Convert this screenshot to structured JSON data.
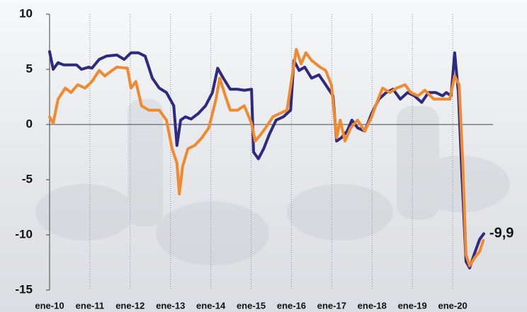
{
  "chart_data": {
    "type": "line",
    "annotation": "-9,9",
    "annotation_color": "#a3275f",
    "xlim": [
      2010,
      2021
    ],
    "xticks": [
      {
        "value": 2010,
        "label": "ene-10"
      },
      {
        "value": 2011,
        "label": "ene-11"
      },
      {
        "value": 2012,
        "label": "ene-12"
      },
      {
        "value": 2013,
        "label": "ene-13"
      },
      {
        "value": 2014,
        "label": "ene-14"
      },
      {
        "value": 2015,
        "label": "ene-15"
      },
      {
        "value": 2016,
        "label": "ene-16"
      },
      {
        "value": 2017,
        "label": "ene-17"
      },
      {
        "value": 2018,
        "label": "ene-18"
      },
      {
        "value": 2019,
        "label": "ene-19"
      },
      {
        "value": 2020,
        "label": "ene-20"
      }
    ],
    "ylim": [
      -15,
      10
    ],
    "yticks": [
      -15,
      -10,
      -5,
      0,
      5,
      10
    ],
    "grid": true,
    "series": [
      {
        "color": "#2e2a7f",
        "x": [
          2010.0,
          2010.09,
          2010.21,
          2010.35,
          2010.53,
          2010.67,
          2010.79,
          2010.97,
          2011.05,
          2011.23,
          2011.41,
          2011.67,
          2011.85,
          2012.02,
          2012.2,
          2012.37,
          2012.55,
          2012.72,
          2012.9,
          2013.08,
          2013.16,
          2013.25,
          2013.37,
          2013.51,
          2013.69,
          2013.87,
          2014.04,
          2014.17,
          2014.31,
          2014.48,
          2014.66,
          2014.83,
          2015.01,
          2015.06,
          2015.18,
          2015.31,
          2015.45,
          2015.62,
          2015.8,
          2015.98,
          2016.06,
          2016.19,
          2016.33,
          2016.5,
          2016.68,
          2016.85,
          2017.03,
          2017.12,
          2017.24,
          2017.38,
          2017.5,
          2017.64,
          2017.82,
          2017.99,
          2018.17,
          2018.35,
          2018.52,
          2018.7,
          2018.88,
          2019.05,
          2019.23,
          2019.4,
          2019.58,
          2019.75,
          2019.84,
          2019.96,
          2020.05,
          2020.14,
          2020.23,
          2020.33,
          2020.42,
          2020.54,
          2020.67,
          2020.77
        ],
        "values": [
          6.6,
          5.0,
          5.6,
          5.4,
          5.4,
          5.4,
          5.0,
          5.2,
          5.1,
          5.9,
          6.2,
          6.3,
          5.9,
          6.5,
          6.5,
          6.2,
          4.2,
          3.3,
          2.9,
          1.7,
          -1.9,
          0.4,
          0.7,
          0.5,
          1.0,
          1.7,
          2.9,
          5.1,
          4.2,
          3.2,
          3.2,
          3.1,
          3.2,
          -2.5,
          -3.1,
          -2.2,
          -0.9,
          0.4,
          0.7,
          1.3,
          5.8,
          4.9,
          5.2,
          4.2,
          4.5,
          3.6,
          2.6,
          -1.5,
          -1.2,
          -0.6,
          0.4,
          -0.3,
          -0.6,
          1.0,
          2.3,
          2.9,
          3.2,
          2.3,
          2.9,
          2.6,
          2.0,
          2.9,
          2.9,
          2.6,
          2.9,
          2.6,
          6.5,
          2.9,
          -4.7,
          -12.4,
          -13.0,
          -11.7,
          -10.4,
          -9.9
        ]
      },
      {
        "color": "#f0892f",
        "x": [
          2010.0,
          2010.09,
          2010.21,
          2010.39,
          2010.53,
          2010.7,
          2010.88,
          2011.05,
          2011.23,
          2011.37,
          2011.55,
          2011.67,
          2011.93,
          2012.02,
          2012.14,
          2012.28,
          2012.46,
          2012.72,
          2012.9,
          2013.04,
          2013.16,
          2013.22,
          2013.3,
          2013.43,
          2013.6,
          2013.78,
          2013.95,
          2014.13,
          2014.22,
          2014.36,
          2014.48,
          2014.66,
          2014.83,
          2015.01,
          2015.1,
          2015.24,
          2015.36,
          2015.54,
          2015.71,
          2015.89,
          2016.01,
          2016.12,
          2016.24,
          2016.36,
          2016.5,
          2016.71,
          2016.85,
          2016.99,
          2017.12,
          2017.21,
          2017.33,
          2017.47,
          2017.64,
          2017.82,
          2017.99,
          2018.12,
          2018.26,
          2018.44,
          2018.61,
          2018.82,
          2018.96,
          2019.14,
          2019.31,
          2019.53,
          2019.75,
          2019.93,
          2020.05,
          2020.16,
          2020.25,
          2020.33,
          2020.42,
          2020.54,
          2020.67,
          2020.76
        ],
        "values": [
          0.7,
          0.1,
          2.3,
          3.3,
          2.9,
          3.6,
          3.3,
          3.9,
          4.9,
          4.4,
          4.9,
          5.2,
          5.1,
          3.3,
          3.9,
          1.7,
          1.3,
          1.3,
          0.4,
          -2.2,
          -3.5,
          -6.3,
          -3.8,
          -2.2,
          -1.9,
          -1.2,
          -0.3,
          2.3,
          4.2,
          2.6,
          1.3,
          1.3,
          1.7,
          0.1,
          -1.5,
          -0.9,
          -0.3,
          0.7,
          1.0,
          1.3,
          4.2,
          6.8,
          5.5,
          6.5,
          5.8,
          5.2,
          4.9,
          3.6,
          -1.2,
          0.4,
          -1.5,
          -0.3,
          0.4,
          -0.6,
          0.7,
          2.0,
          3.3,
          2.9,
          3.3,
          3.6,
          2.9,
          2.6,
          3.1,
          2.3,
          2.3,
          2.3,
          4.4,
          3.6,
          -3.5,
          -11.8,
          -12.8,
          -12.1,
          -11.5,
          -10.5
        ]
      }
    ]
  }
}
